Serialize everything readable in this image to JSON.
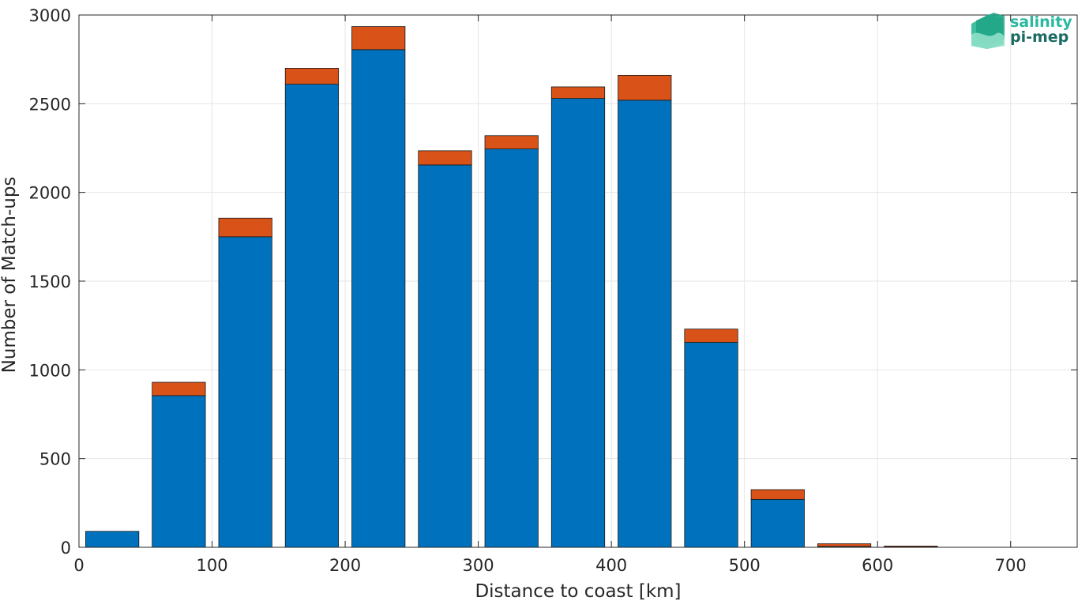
{
  "chart_data": {
    "type": "bar",
    "stacked": true,
    "x": [
      25,
      75,
      125,
      175,
      225,
      275,
      325,
      375,
      425,
      475,
      525,
      575,
      625
    ],
    "bar_width": 40,
    "series": [
      {
        "values": [
          90,
          855,
          1750,
          2610,
          2805,
          2155,
          2245,
          2530,
          2520,
          1155,
          270,
          5,
          2
        ],
        "color": "#0072BD"
      },
      {
        "values": [
          0,
          75,
          105,
          90,
          130,
          80,
          75,
          65,
          140,
          75,
          55,
          15,
          5
        ],
        "color": "#D95319"
      }
    ],
    "xlabel": "Distance to coast [km]",
    "ylabel": "Number of Match-ups",
    "xlim": [
      0,
      750
    ],
    "ylim": [
      0,
      3000
    ],
    "xticks": [
      0,
      100,
      200,
      300,
      400,
      500,
      600,
      700
    ],
    "yticks": [
      0,
      500,
      1000,
      1500,
      2000,
      2500,
      3000
    ],
    "grid": true
  },
  "logo": {
    "line1": "salinity",
    "line2": "pi-mep",
    "color1": "#2bb8a0",
    "color2": "#1b6b63"
  }
}
